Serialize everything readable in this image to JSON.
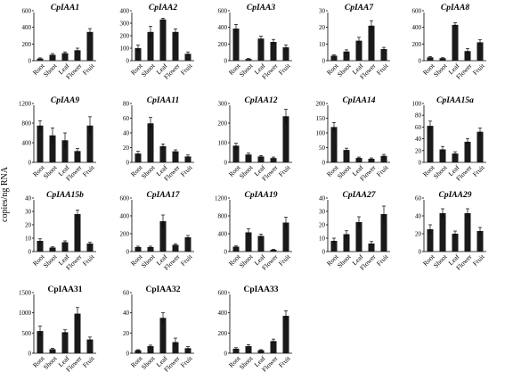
{
  "ylabel": "copies/ng RNA",
  "chart_data": [
    {
      "type": "bar",
      "title": "CpIAA1",
      "categories": [
        "Root",
        "Shoot",
        "Leaf",
        "Flower",
        "Fruit"
      ],
      "values": [
        25,
        70,
        90,
        125,
        345
      ],
      "errors": [
        8,
        15,
        15,
        25,
        40
      ],
      "ylim": [
        0,
        600
      ],
      "yticks": [
        0,
        200,
        400,
        600
      ]
    },
    {
      "type": "bar",
      "title": "CpIAA2",
      "categories": [
        "Root",
        "Shoot",
        "Leaf",
        "Flower",
        "Fruit"
      ],
      "values": [
        100,
        230,
        330,
        230,
        55
      ],
      "errors": [
        25,
        45,
        10,
        25,
        15
      ],
      "ylim": [
        0,
        400
      ],
      "yticks": [
        0,
        100,
        200,
        300,
        400
      ]
    },
    {
      "type": "bar",
      "title": "CpIAA3",
      "categories": [
        "Root",
        "Shoot",
        "Leaf",
        "Flower",
        "Fruit"
      ],
      "values": [
        385,
        20,
        265,
        225,
        160
      ],
      "errors": [
        50,
        5,
        30,
        30,
        30
      ],
      "ylim": [
        0,
        600
      ],
      "yticks": [
        0,
        200,
        400,
        600
      ]
    },
    {
      "type": "bar",
      "title": "CpIAA7",
      "categories": [
        "Root",
        "Shoot",
        "Leaf",
        "Flower",
        "Fruit"
      ],
      "values": [
        3,
        5.5,
        12,
        21,
        7
      ],
      "errors": [
        0.5,
        1,
        2,
        3,
        1
      ],
      "ylim": [
        0,
        30
      ],
      "yticks": [
        0,
        10,
        20,
        30
      ]
    },
    {
      "type": "bar",
      "title": "CpIAA8",
      "categories": [
        "Root",
        "Shoot",
        "Leaf",
        "Flower",
        "Fruit"
      ],
      "values": [
        40,
        30,
        430,
        115,
        220
      ],
      "errors": [
        8,
        5,
        25,
        30,
        30
      ],
      "ylim": [
        0,
        600
      ],
      "yticks": [
        0,
        200,
        400,
        600
      ]
    },
    {
      "type": "bar",
      "title": "CpIAA9",
      "categories": [
        "Root",
        "Shoot",
        "Leaf",
        "Flower",
        "Fruit"
      ],
      "values": [
        750,
        550,
        450,
        230,
        750
      ],
      "errors": [
        100,
        150,
        150,
        50,
        180
      ],
      "ylim": [
        0,
        1200
      ],
      "yticks": [
        0,
        400,
        800,
        1200
      ]
    },
    {
      "type": "bar",
      "title": "CpIAA11",
      "categories": [
        "Root",
        "Shoot",
        "Leaf",
        "Flower",
        "Fruit"
      ],
      "values": [
        12,
        53,
        22,
        15,
        8
      ],
      "errors": [
        3,
        8,
        3,
        2,
        2
      ],
      "ylim": [
        0,
        80
      ],
      "yticks": [
        0,
        20,
        40,
        60,
        80
      ]
    },
    {
      "type": "bar",
      "title": "CpIAA12",
      "categories": [
        "Root",
        "Shoot",
        "Leaf",
        "Flower",
        "Fruit"
      ],
      "values": [
        85,
        40,
        30,
        22,
        235
      ],
      "errors": [
        12,
        7,
        5,
        5,
        35
      ],
      "ylim": [
        0,
        300
      ],
      "yticks": [
        0,
        100,
        200,
        300
      ]
    },
    {
      "type": "bar",
      "title": "CpIAA14",
      "categories": [
        "Root",
        "Shoot",
        "Leaf",
        "Flower",
        "Fruit"
      ],
      "values": [
        120,
        42,
        15,
        12,
        22
      ],
      "errors": [
        15,
        6,
        3,
        3,
        5
      ],
      "ylim": [
        0,
        200
      ],
      "yticks": [
        0,
        50,
        100,
        150,
        200
      ]
    },
    {
      "type": "bar",
      "title": "CpIAA15a",
      "categories": [
        "Root",
        "Shoot",
        "Leaf",
        "Flower",
        "Fruit"
      ],
      "values": [
        62,
        22,
        15,
        35,
        52
      ],
      "errors": [
        8,
        5,
        3,
        5,
        6
      ],
      "ylim": [
        0,
        100
      ],
      "yticks": [
        0,
        20,
        40,
        60,
        80,
        100
      ]
    },
    {
      "type": "bar",
      "title": "CpIAA15b",
      "categories": [
        "Root",
        "Shoot",
        "Leaf",
        "Flower",
        "Fruit"
      ],
      "values": [
        8,
        3,
        7,
        28,
        6
      ],
      "errors": [
        1.5,
        0.5,
        1,
        3,
        1
      ],
      "ylim": [
        0,
        40
      ],
      "yticks": [
        0,
        10,
        20,
        30,
        40
      ]
    },
    {
      "type": "bar",
      "title": "CpIAA17",
      "categories": [
        "Root",
        "Shoot",
        "Leaf",
        "Flower",
        "Fruit"
      ],
      "values": [
        50,
        50,
        340,
        75,
        160
      ],
      "errors": [
        10,
        10,
        70,
        12,
        20
      ],
      "ylim": [
        0,
        600
      ],
      "yticks": [
        0,
        200,
        400,
        600
      ]
    },
    {
      "type": "bar",
      "title": "CpIAA19",
      "categories": [
        "Root",
        "Shoot",
        "Leaf",
        "Flower",
        "Fruit"
      ],
      "values": [
        110,
        430,
        350,
        40,
        650
      ],
      "errors": [
        15,
        80,
        40,
        10,
        120
      ],
      "ylim": [
        0,
        1200
      ],
      "yticks": [
        0,
        400,
        800,
        1200
      ]
    },
    {
      "type": "bar",
      "title": "CpIAA27",
      "categories": [
        "Root",
        "Shoot",
        "Leaf",
        "Flower",
        "Fruit"
      ],
      "values": [
        8,
        13,
        22,
        6,
        28
      ],
      "errors": [
        2,
        2.5,
        4,
        1.5,
        6
      ],
      "ylim": [
        0,
        40
      ],
      "yticks": [
        0,
        10,
        20,
        30,
        40
      ]
    },
    {
      "type": "bar",
      "title": "CpIAA29",
      "categories": [
        "Root",
        "Shoot",
        "Leaf",
        "Flower",
        "Fruit"
      ],
      "values": [
        25,
        43,
        20,
        43,
        23
      ],
      "errors": [
        5,
        5,
        3,
        5,
        4
      ],
      "ylim": [
        0,
        60
      ],
      "yticks": [
        0,
        20,
        40,
        60
      ]
    },
    {
      "type": "bar",
      "title": "CpIAA31",
      "categories": [
        "Root",
        "Shoot",
        "Leaf",
        "Flower",
        "Fruit"
      ],
      "values": [
        550,
        100,
        520,
        980,
        340
      ],
      "errors": [
        120,
        25,
        60,
        150,
        60
      ],
      "ylim": [
        0,
        1500
      ],
      "yticks": [
        0,
        500,
        1000,
        1500
      ]
    },
    {
      "type": "bar",
      "title": "CpIAA32",
      "categories": [
        "Root",
        "Shoot",
        "Leaf",
        "Flower",
        "Fruit"
      ],
      "values": [
        3,
        7,
        35,
        11,
        5
      ],
      "errors": [
        0.5,
        1,
        5,
        4,
        1.5
      ],
      "ylim": [
        0,
        60
      ],
      "yticks": [
        0,
        20,
        40,
        60
      ]
    },
    {
      "type": "bar",
      "title": "CpIAA33",
      "categories": [
        "Root",
        "Shoot",
        "Leaf",
        "Flower",
        "Fruit"
      ],
      "values": [
        45,
        70,
        30,
        120,
        370
      ],
      "errors": [
        10,
        15,
        5,
        20,
        50
      ],
      "ylim": [
        0,
        600
      ],
      "yticks": [
        0,
        200,
        400,
        600
      ]
    }
  ]
}
